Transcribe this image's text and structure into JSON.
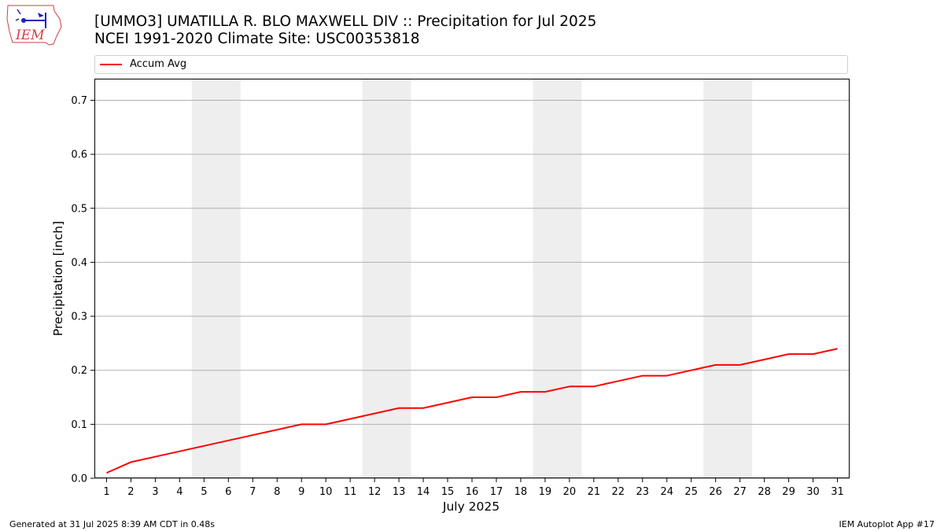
{
  "header": {
    "title_line1": "[UMMO3] UMATILLA R. BLO MAXWELL DIV :: Precipitation for Jul 2025",
    "title_line2": "NCEI 1991-2020 Climate Site: USC00353818",
    "logo_text": "IEM"
  },
  "footer": {
    "generated": "Generated at 31 Jul 2025 8:39 AM CDT in 0.48s",
    "app": "IEM Autoplot App #17"
  },
  "colors": {
    "line": "#ff0000",
    "weekend_band": "#eeeeee",
    "grid": "#b0b0b0"
  },
  "chart_data": {
    "type": "line",
    "xlabel": "July 2025",
    "ylabel": "Precipitation [inch]",
    "xlim": [
      0.5,
      31.5
    ],
    "ylim": [
      0,
      0.74
    ],
    "yticks": [
      0.0,
      0.1,
      0.2,
      0.3,
      0.4,
      0.5,
      0.6,
      0.7
    ],
    "ytick_labels": [
      "0.0",
      "0.1",
      "0.2",
      "0.3",
      "0.4",
      "0.5",
      "0.6",
      "0.7"
    ],
    "x": [
      1,
      2,
      3,
      4,
      5,
      6,
      7,
      8,
      9,
      10,
      11,
      12,
      13,
      14,
      15,
      16,
      17,
      18,
      19,
      20,
      21,
      22,
      23,
      24,
      25,
      26,
      27,
      28,
      29,
      30,
      31
    ],
    "xtick_labels": [
      "1",
      "2",
      "3",
      "4",
      "5",
      "6",
      "7",
      "8",
      "9",
      "10",
      "11",
      "12",
      "13",
      "14",
      "15",
      "16",
      "17",
      "18",
      "19",
      "20",
      "21",
      "22",
      "23",
      "24",
      "25",
      "26",
      "27",
      "28",
      "29",
      "30",
      "31"
    ],
    "grid": "y",
    "legend_position": "top",
    "weekend_bands": [
      [
        4.5,
        6.5
      ],
      [
        11.5,
        13.5
      ],
      [
        18.5,
        20.5
      ],
      [
        25.5,
        27.5
      ]
    ],
    "series": [
      {
        "name": "Accum Avg",
        "values": [
          0.01,
          0.03,
          0.04,
          0.05,
          0.06,
          0.07,
          0.08,
          0.09,
          0.1,
          0.1,
          0.11,
          0.12,
          0.13,
          0.13,
          0.14,
          0.15,
          0.15,
          0.16,
          0.16,
          0.17,
          0.17,
          0.18,
          0.19,
          0.19,
          0.2,
          0.21,
          0.21,
          0.22,
          0.23,
          0.23,
          0.24
        ]
      }
    ]
  }
}
